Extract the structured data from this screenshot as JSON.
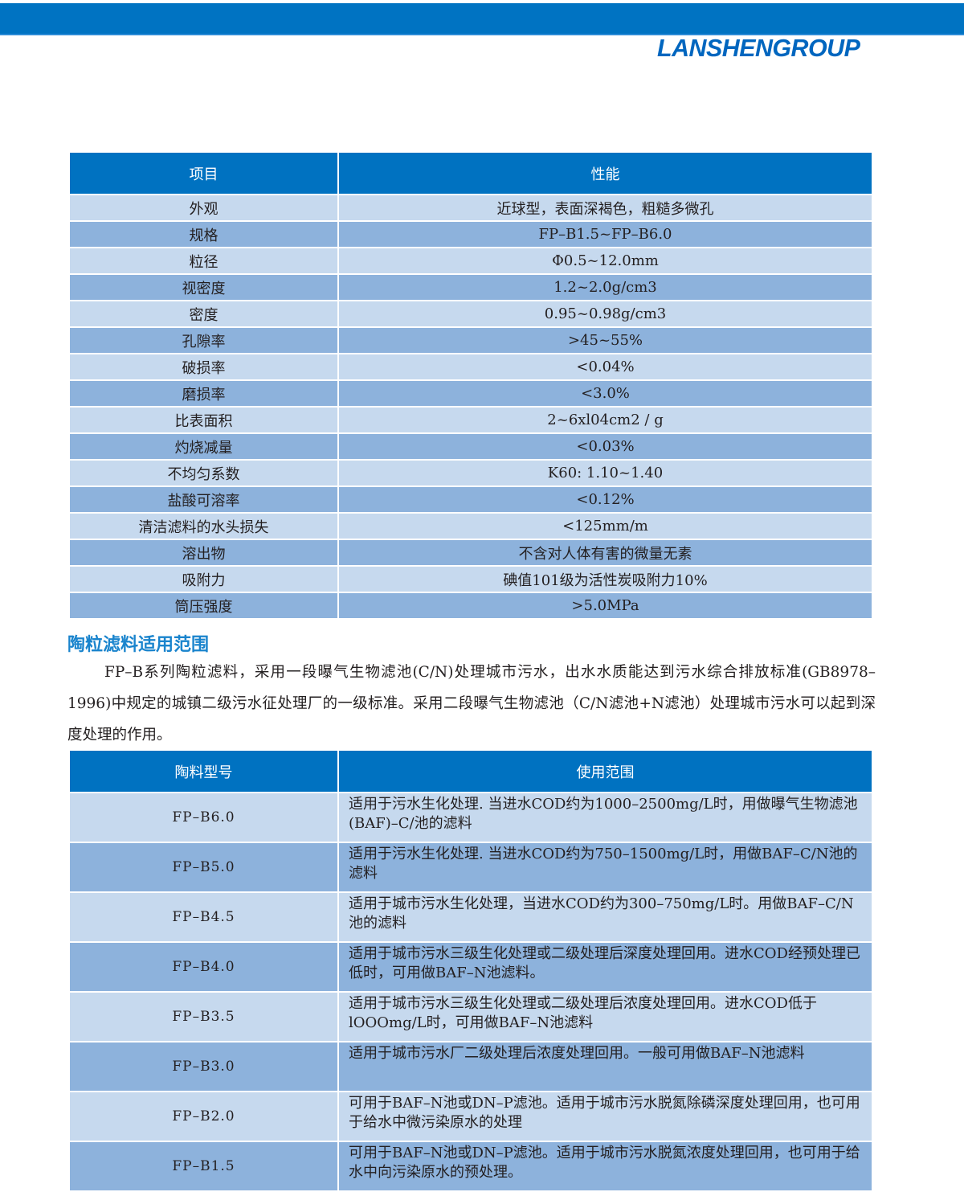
{
  "brand": {
    "logo_text": "LANSHENGROUP",
    "color": "#0066bf"
  },
  "colors": {
    "header": "#0072c1",
    "row_light": "#c6d9ee",
    "row_dark": "#8db2dc"
  },
  "specs_table": {
    "headers": [
      "项目",
      "性能"
    ],
    "rows": [
      [
        "外观",
        "近球型，表面深褐色，粗糙多微孔"
      ],
      [
        "规格",
        "FP–B1.5~FP–B6.0"
      ],
      [
        "粒径",
        "Φ0.5~12.0mm"
      ],
      [
        "视密度",
        "1.2~2.0g/cm3"
      ],
      [
        "密度",
        "0.95~0.98g/cm3"
      ],
      [
        "孔隙率",
        ">45~55%"
      ],
      [
        "破损率",
        "<0.04%"
      ],
      [
        "磨损率",
        "<3.0%"
      ],
      [
        "比表面积",
        "2~6xl04cm2 / g"
      ],
      [
        "灼烧减量",
        "<0.03%"
      ],
      [
        "不均匀系数",
        "K60: 1.10~1.40"
      ],
      [
        "盐酸可溶率",
        "<0.12%"
      ],
      [
        "清洁滤料的水头损失",
        "<125mm/m"
      ],
      [
        "溶出物",
        "不含对人体有害的微量无素"
      ],
      [
        "吸附力",
        "碘值101级为活性炭吸附力10%"
      ],
      [
        "筒压强度",
        ">5.0MPa"
      ]
    ]
  },
  "section": {
    "title": "陶粒滤料适用范围",
    "paragraph": "FP–B系列陶粒滤料，采用一段曝气生物滤池(C/N)处理城市污水，出水水质能达到污水综合排放标准(GB8978–1996)中规定的城镇二级污水征处理厂的一级标准。采用二段曝气生物滤池（C/N滤池+N滤池）处理城市污水可以起到深度处理的作用。"
  },
  "usage_table": {
    "headers": [
      "陶料型号",
      "使用范围"
    ],
    "rows": [
      [
        "FP–B6.0",
        "适用于污水生化处理. 当进水COD约为1000–2500mg/L时，用做曝气生物滤池(BAF)–C/池的滤料"
      ],
      [
        "FP–B5.0",
        "适用于污水生化处理. 当进水COD约为750–1500mg/L时，用做BAF–C/N池的滤料"
      ],
      [
        "FP–B4.5",
        "适用于城市污水生化处理，当进水COD约为300–750mg/L时。用做BAF–C/N池的滤料"
      ],
      [
        "FP–B4.0",
        "适用于城市污水三级生化处理或二级处理后深度处理回用。进水COD经预处理已低时，可用做BAF–N池滤料。"
      ],
      [
        "FP–B3.5",
        "适用于城市污水三级生化处理或二级处理后浓度处理回用。进水COD低于lOOOmg/L时，可用做BAF–N池滤料"
      ],
      [
        "FP–B3.0",
        "适用于城市污水厂二级处理后浓度处理回用。一般可用做BAF–N池滤料"
      ],
      [
        "FP–B2.0",
        "可用于BAF–N池或DN–P滤池。适用于城市污水脱氮除磷深度处理回用，也可用于给水中微污染原水的处理"
      ],
      [
        "FP–B1.5",
        "可用于BAF–N池或DN–P滤池。适用于城市污水脱氮浓度处理回用，也可用于给水中向污染原水的预处理。"
      ]
    ]
  }
}
